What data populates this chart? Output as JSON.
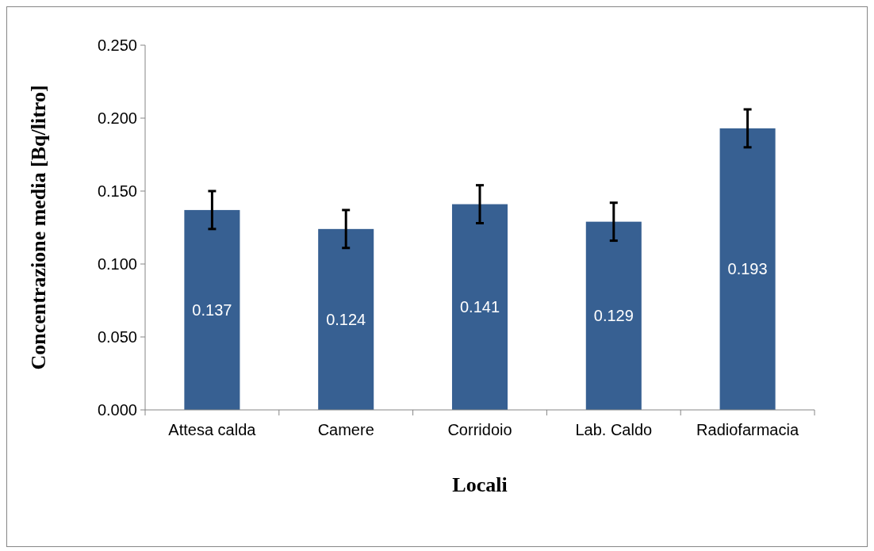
{
  "chart_data": {
    "type": "bar",
    "xlabel": "Locali",
    "ylabel": "Concentrazione media [Bq/litro]",
    "categories": [
      "Attesa calda",
      "Camere",
      "Corridoio",
      "Lab. Caldo",
      "Radiofarmacia"
    ],
    "values": [
      0.137,
      0.124,
      0.141,
      0.129,
      0.193
    ],
    "errors": [
      0.013,
      0.013,
      0.013,
      0.013,
      0.013
    ],
    "color": "#376092",
    "data_labels": true,
    "ylim": [
      0,
      0.25
    ],
    "yticks": [
      {
        "value": 0,
        "label": "0.000"
      },
      {
        "value": 0.05,
        "label": "0.050"
      },
      {
        "value": 0.1,
        "label": "0.100"
      },
      {
        "value": 0.15,
        "label": "0.150"
      },
      {
        "value": 0.2,
        "label": "0.200"
      },
      {
        "value": 0.25,
        "label": "0.250"
      }
    ],
    "grid": false
  }
}
